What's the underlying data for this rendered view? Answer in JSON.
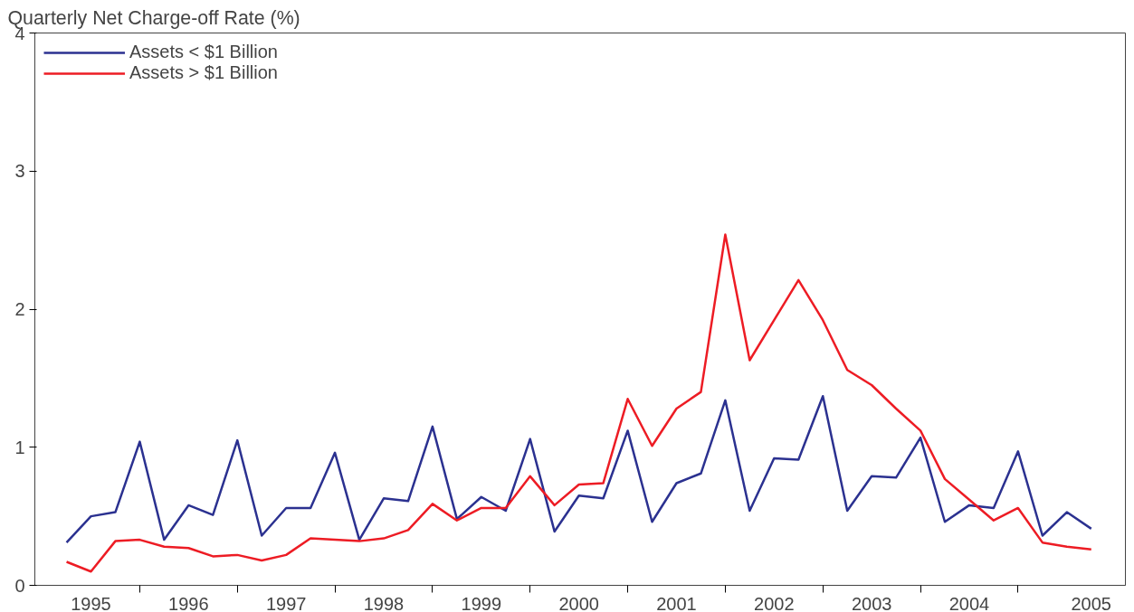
{
  "chart_data": {
    "type": "line",
    "ylabel": "Quarterly Net Charge-off Rate (%)",
    "x": [
      1995,
      1995.25,
      1995.5,
      1995.75,
      1996,
      1996.25,
      1996.5,
      1996.75,
      1997,
      1997.25,
      1997.5,
      1997.75,
      1998,
      1998.25,
      1998.5,
      1998.75,
      1999,
      1999.25,
      1999.5,
      1999.75,
      2000,
      2000.25,
      2000.5,
      2000.75,
      2001,
      2001.25,
      2001.5,
      2001.75,
      2002,
      2002.25,
      2002.5,
      2002.75,
      2003,
      2003.25,
      2003.5,
      2003.75,
      2004,
      2004.25,
      2004.5,
      2004.75,
      2005,
      2005.25,
      2005.5
    ],
    "series": [
      {
        "name": "Assets < $1 Billion",
        "color": "#2b3190",
        "values": [
          0.31,
          0.5,
          0.53,
          1.04,
          0.33,
          0.58,
          0.51,
          1.05,
          0.36,
          0.56,
          0.56,
          0.96,
          0.33,
          0.63,
          0.61,
          1.15,
          0.48,
          0.64,
          0.54,
          1.06,
          0.39,
          0.65,
          0.63,
          1.12,
          0.46,
          0.74,
          0.81,
          1.34,
          0.54,
          0.92,
          0.91,
          1.37,
          0.54,
          0.79,
          0.78,
          1.07,
          0.46,
          0.58,
          0.56,
          0.97,
          0.36,
          0.53,
          0.41
        ]
      },
      {
        "name": "Assets > $1 Billion",
        "color": "#ed1c24",
        "values": [
          0.17,
          0.1,
          0.32,
          0.33,
          0.28,
          0.27,
          0.21,
          0.22,
          0.18,
          0.22,
          0.34,
          0.33,
          0.32,
          0.34,
          0.4,
          0.59,
          0.47,
          0.56,
          0.56,
          0.79,
          0.58,
          0.73,
          0.74,
          1.35,
          1.01,
          1.28,
          1.4,
          2.54,
          1.63,
          1.92,
          2.21,
          1.92,
          1.56,
          1.45,
          1.28,
          1.12,
          0.77,
          0.62,
          0.47,
          0.56,
          0.31,
          0.28,
          0.26
        ]
      }
    ],
    "xlim": [
      1994.675,
      2005.85
    ],
    "xticks": [
      {
        "value": 1995.25,
        "label": "1995"
      },
      {
        "value": 1996.25,
        "label": "1996"
      },
      {
        "value": 1997.25,
        "label": "1997"
      },
      {
        "value": 1998.25,
        "label": "1998"
      },
      {
        "value": 1999.25,
        "label": "1999"
      },
      {
        "value": 2000.25,
        "label": "2000"
      },
      {
        "value": 2001.25,
        "label": "2001"
      },
      {
        "value": 2002.25,
        "label": "2002"
      },
      {
        "value": 2003.25,
        "label": "2003"
      },
      {
        "value": 2004.25,
        "label": "2004"
      },
      {
        "value": 2005.5,
        "label": "2005"
      },
      {
        "value": 1995.75,
        "label": null
      },
      {
        "value": 1996.75,
        "label": null
      },
      {
        "value": 1997.75,
        "label": null
      },
      {
        "value": 1998.75,
        "label": null
      },
      {
        "value": 1999.75,
        "label": null
      },
      {
        "value": 2000.75,
        "label": null
      },
      {
        "value": 2001.75,
        "label": null
      },
      {
        "value": 2002.75,
        "label": null
      },
      {
        "value": 2003.75,
        "label": null
      },
      {
        "value": 2004.75,
        "label": null
      }
    ],
    "ylim": [
      0,
      4
    ],
    "yticks": [
      0,
      1,
      2,
      3,
      4
    ],
    "grid": false,
    "legend": "top left",
    "marker": "none",
    "line_style": "solid"
  }
}
